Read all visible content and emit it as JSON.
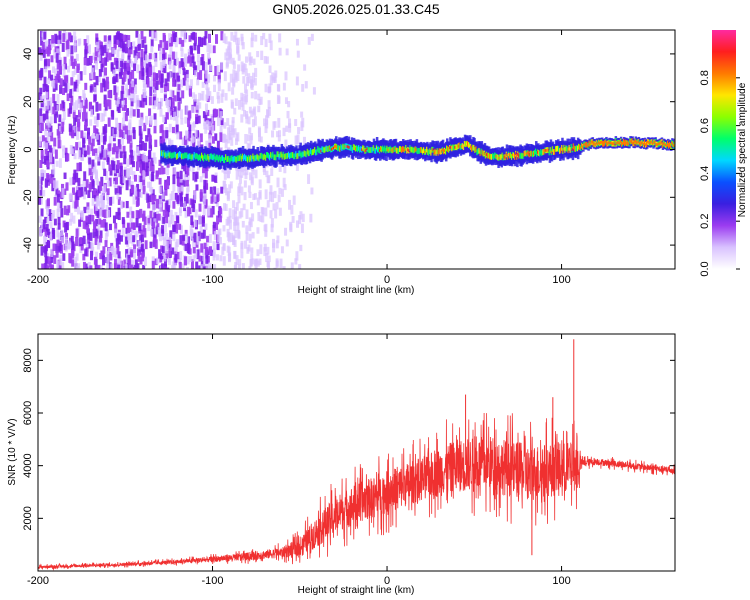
{
  "title": "GN05.2026.025.01.33.C45",
  "chart_data": [
    {
      "type": "heatmap",
      "name": "spectrogram",
      "xlabel": "Height of straight line (km)",
      "ylabel": "Frequency (Hz)",
      "xlim": [
        -200,
        165
      ],
      "ylim": [
        -50,
        50
      ],
      "xticks": [
        -200,
        -100,
        0,
        100
      ],
      "yticks": [
        -40,
        -20,
        0,
        20,
        40
      ],
      "colorbar": {
        "label": "Normalized spectral amplitude",
        "range": [
          0,
          1
        ],
        "ticks": [
          "0.0",
          "0.2",
          "0.4",
          "0.6",
          "0.8"
        ],
        "tick_values": [
          0.0,
          0.2,
          0.4,
          0.6,
          0.8
        ],
        "colors": [
          "#ffffff",
          "#d9c2ff",
          "#9b3cf0",
          "#3a1fe0",
          "#0a50ff",
          "#00d8ff",
          "#00ff6a",
          "#8cff00",
          "#ffe600",
          "#ff7a00",
          "#ff1e1e",
          "#ff2aa0"
        ]
      },
      "ridge": {
        "x": [
          -130,
          -110,
          -90,
          -70,
          -50,
          -30,
          -10,
          10,
          30,
          45,
          55,
          65,
          80,
          100,
          110,
          120,
          140,
          165
        ],
        "y": [
          -2,
          -3,
          -4,
          -3,
          -2,
          1,
          0,
          0,
          -1,
          2,
          -2,
          -3,
          -2,
          0,
          1,
          3,
          3,
          2
        ]
      },
      "noise_region_x": [
        -200,
        -40
      ]
    },
    {
      "type": "line",
      "name": "snr",
      "xlabel": "Height of straight line (km)",
      "ylabel": "SNR (10 * V/V)",
      "xlim": [
        -200,
        165
      ],
      "ylim": [
        0,
        9000
      ],
      "xticks": [
        -200,
        -100,
        0,
        100
      ],
      "yticks": [
        2000,
        4000,
        6000,
        8000
      ],
      "color": "#f03030",
      "envelope": {
        "x": [
          -200,
          -150,
          -120,
          -100,
          -80,
          -60,
          -50,
          -40,
          -30,
          -20,
          0,
          20,
          40,
          60,
          80,
          100,
          110,
          111,
          120,
          140,
          165
        ],
        "mean": [
          150,
          250,
          350,
          450,
          550,
          700,
          900,
          1500,
          2100,
          2500,
          3000,
          3500,
          4000,
          4100,
          3700,
          3900,
          4000,
          4100,
          4150,
          4000,
          3800
        ],
        "spread": [
          100,
          120,
          150,
          200,
          300,
          400,
          700,
          1200,
          1400,
          1500,
          1600,
          1700,
          2000,
          2100,
          2200,
          2000,
          1800,
          300,
          250,
          250,
          250
        ]
      },
      "spikes": [
        {
          "x": 45,
          "y": 6700
        },
        {
          "x": 95,
          "y": 6600
        },
        {
          "x": 107,
          "y": 8800
        },
        {
          "x": 83,
          "y": 600
        }
      ]
    }
  ]
}
